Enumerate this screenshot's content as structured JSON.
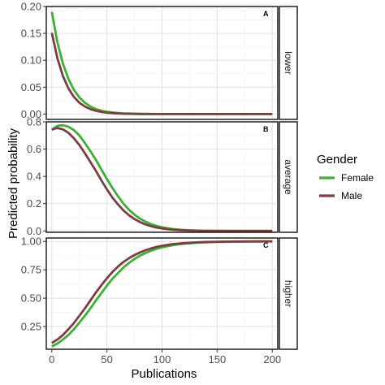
{
  "chart_data": {
    "type": "line",
    "xlabel": "Publications",
    "ylabel": "Predicted probability",
    "xlim": [
      -5,
      205
    ],
    "x_ticks": [
      "0",
      "50",
      "100",
      "150",
      "200"
    ],
    "x_tick_values": [
      0,
      50,
      100,
      150,
      200
    ],
    "grid": true,
    "legend": {
      "title": "Gender",
      "position": "right",
      "entries": [
        {
          "name": "Female",
          "color": "#3cb033"
        },
        {
          "name": "Male",
          "color": "#7a3f43"
        }
      ]
    },
    "x": [
      0,
      5,
      10,
      15,
      20,
      25,
      30,
      35,
      40,
      45,
      50,
      55,
      60,
      65,
      70,
      75,
      80,
      85,
      90,
      95,
      100,
      105,
      110,
      115,
      120,
      125,
      130,
      135,
      140,
      145,
      150,
      155,
      160,
      165,
      170,
      175,
      180,
      185,
      190,
      195,
      200
    ],
    "panels": [
      {
        "strip": "lower",
        "letter": "A",
        "ylim": [
          -0.01,
          0.2
        ],
        "y_ticks": [
          "0.00",
          "0.05",
          "0.10",
          "0.15",
          "0.20"
        ],
        "y_tick_values": [
          0,
          0.05,
          0.1,
          0.15,
          0.2
        ],
        "series": [
          {
            "name": "Female",
            "color": "#3cb033",
            "values": [
              0.19,
              0.134,
              0.094,
              0.066,
              0.045,
              0.031,
              0.021,
              0.014,
              0.009,
              0.006,
              0.004,
              0.003,
              0.002,
              0.001,
              0.001,
              0.0005,
              0.0003,
              0.0002,
              0.0001,
              0,
              0,
              0,
              0,
              0,
              0,
              0,
              0,
              0,
              0,
              0,
              0,
              0,
              0,
              0,
              0,
              0,
              0,
              0,
              0,
              0,
              0
            ]
          },
          {
            "name": "Male",
            "color": "#7a3f43",
            "values": [
              0.151,
              0.104,
              0.071,
              0.048,
              0.032,
              0.021,
              0.014,
              0.009,
              0.006,
              0.004,
              0.0025,
              0.0016,
              0.001,
              0.0006,
              0.0004,
              0.0002,
              0.0001,
              0,
              0,
              0,
              0,
              0,
              0,
              0,
              0,
              0,
              0,
              0,
              0,
              0,
              0,
              0,
              0,
              0,
              0,
              0,
              0,
              0,
              0,
              0,
              0
            ]
          }
        ]
      },
      {
        "strip": "average",
        "letter": "B",
        "ylim": [
          -0.01,
          0.8
        ],
        "y_ticks": [
          "0.0",
          "0.2",
          "0.4",
          "0.6",
          "0.8"
        ],
        "y_tick_values": [
          0,
          0.2,
          0.4,
          0.6,
          0.8
        ],
        "series": [
          {
            "name": "Female",
            "color": "#3cb033",
            "values": [
              0.74,
              0.77,
              0.775,
              0.765,
              0.74,
              0.7,
              0.645,
              0.585,
              0.52,
              0.45,
              0.38,
              0.315,
              0.255,
              0.2,
              0.155,
              0.12,
              0.09,
              0.068,
              0.05,
              0.037,
              0.027,
              0.02,
              0.014,
              0.01,
              0.007,
              0.005,
              0.003,
              0.002,
              0.0015,
              0.001,
              0.0007,
              0.0005,
              0.0003,
              0.0002,
              0.0001,
              0.0001,
              0,
              0,
              0,
              0,
              0
            ]
          },
          {
            "name": "Male",
            "color": "#7a3f43",
            "values": [
              0.745,
              0.755,
              0.745,
              0.72,
              0.68,
              0.63,
              0.57,
              0.505,
              0.44,
              0.37,
              0.305,
              0.245,
              0.195,
              0.15,
              0.115,
              0.087,
              0.065,
              0.048,
              0.035,
              0.025,
              0.018,
              0.013,
              0.009,
              0.006,
              0.004,
              0.003,
              0.002,
              0.0014,
              0.001,
              0.0006,
              0.0004,
              0.0003,
              0.0002,
              0.0001,
              0,
              0,
              0,
              0,
              0,
              0,
              0
            ]
          }
        ]
      },
      {
        "strip": "higher",
        "letter": "C",
        "ylim": [
          0.05,
          1.03
        ],
        "y_ticks": [
          "0.25",
          "0.50",
          "0.75",
          "1.00"
        ],
        "y_tick_values": [
          0.25,
          0.5,
          0.75,
          1.0
        ],
        "series": [
          {
            "name": "Female",
            "color": "#3cb033",
            "values": [
              0.075,
              0.1,
              0.135,
              0.175,
              0.225,
              0.285,
              0.345,
              0.41,
              0.48,
              0.545,
              0.61,
              0.67,
              0.72,
              0.77,
              0.81,
              0.845,
              0.875,
              0.898,
              0.918,
              0.935,
              0.948,
              0.958,
              0.967,
              0.974,
              0.979,
              0.983,
              0.987,
              0.99,
              0.992,
              0.994,
              0.995,
              0.996,
              0.997,
              0.998,
              0.998,
              0.999,
              0.999,
              0.999,
              1.0,
              1.0,
              1.0
            ]
          },
          {
            "name": "Male",
            "color": "#7a3f43",
            "values": [
              0.105,
              0.135,
              0.175,
              0.225,
              0.28,
              0.345,
              0.41,
              0.48,
              0.55,
              0.615,
              0.675,
              0.73,
              0.778,
              0.818,
              0.852,
              0.88,
              0.903,
              0.922,
              0.938,
              0.951,
              0.961,
              0.969,
              0.976,
              0.981,
              0.985,
              0.988,
              0.991,
              0.993,
              0.995,
              0.996,
              0.997,
              0.998,
              0.998,
              0.999,
              0.999,
              0.999,
              1.0,
              1.0,
              1.0,
              1.0,
              1.0
            ]
          }
        ]
      }
    ]
  }
}
